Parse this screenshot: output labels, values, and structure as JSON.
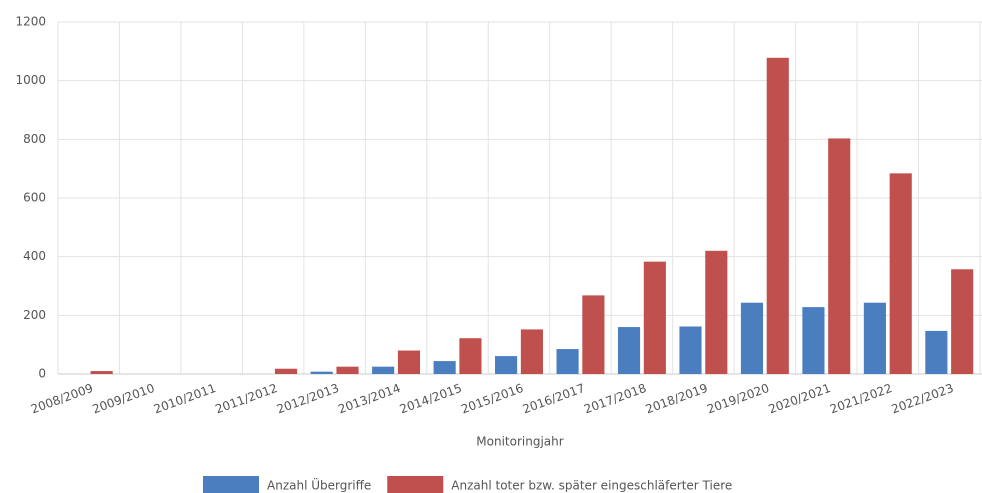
{
  "chart_data": {
    "type": "bar",
    "x_label": "Monitoringjahr",
    "categories": [
      "2008/2009",
      "2009/2010",
      "2010/2011",
      "2011/2012",
      "2012/2013",
      "2013/2014",
      "2014/2015",
      "2015/2016",
      "2016/2017",
      "2017/2018",
      "2018/2019",
      "2019/2020",
      "2020/2021",
      "2021/2022",
      "2022/2023"
    ],
    "series": [
      {
        "name": "Anzahl Übergriffe",
        "color": "#4a7ebf",
        "values": [
          0,
          0,
          0,
          0,
          8,
          25,
          44,
          61,
          85,
          160,
          162,
          243,
          228,
          243,
          147
        ]
      },
      {
        "name": "Anzahl toter bzw. später eingeschläferter Tiere",
        "color": "#c0504d",
        "values": [
          10,
          0,
          0,
          18,
          25,
          80,
          122,
          152,
          268,
          383,
          420,
          1078,
          803,
          684,
          357
        ]
      }
    ],
    "ylim": [
      0,
      1200
    ],
    "yticks": [
      0,
      200,
      400,
      600,
      800,
      1000,
      1200
    ],
    "grid": true,
    "legend": "bottom"
  }
}
